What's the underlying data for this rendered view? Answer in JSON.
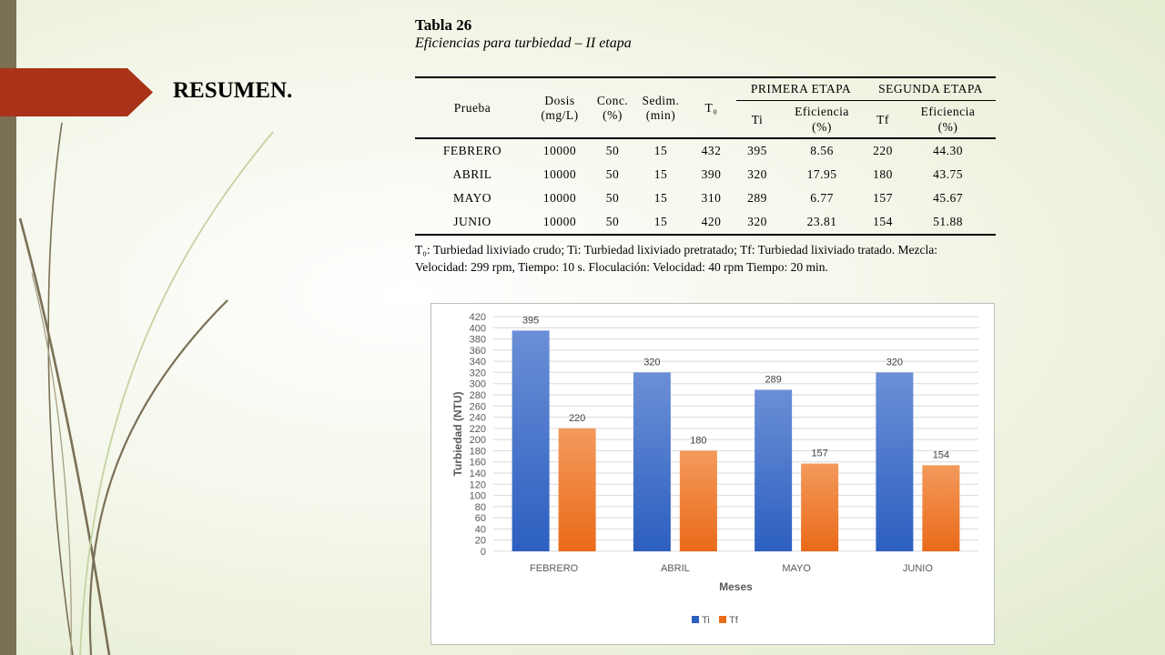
{
  "slide": {
    "heading": "RESUMEN."
  },
  "table": {
    "title": "Tabla 26",
    "subtitle": "Eficiencias para turbiedad – II etapa",
    "headers": {
      "prueba": "Prueba",
      "dosis": [
        "Dosis",
        "(mg/L)"
      ],
      "conc": [
        "Conc.",
        "(%)"
      ],
      "sedim": [
        "Sedim.",
        "(min)"
      ],
      "t0": "T₀",
      "primera_etapa": "PRIMERA ETAPA",
      "segunda_etapa": "SEGUNDA ETAPA",
      "ti": "Ti",
      "tf": "Tf",
      "eficiencia": [
        "Eficiencia",
        "(%)"
      ]
    },
    "rows": [
      [
        "FEBRERO",
        "10000",
        "50",
        "15",
        "432",
        "395",
        "8.56",
        "220",
        "44.30"
      ],
      [
        "ABRIL",
        "10000",
        "50",
        "15",
        "390",
        "320",
        "17.95",
        "180",
        "43.75"
      ],
      [
        "MAYO",
        "10000",
        "50",
        "15",
        "310",
        "289",
        "6.77",
        "157",
        "45.67"
      ],
      [
        "JUNIO",
        "10000",
        "50",
        "15",
        "420",
        "320",
        "23.81",
        "154",
        "51.88"
      ]
    ],
    "notes": [
      "T₀: Turbiedad lixiviado crudo; Ti: Turbiedad lixiviado pretratado; Tf: Turbiedad lixiviado tratado. Mezcla:",
      "Velocidad: 299 rpm, Tiempo: 10 s. Floculación: Velocidad: 40 rpm Tiempo: 20 min."
    ]
  },
  "colors": {
    "arrow": "#a93218",
    "ti_top": "#6b8fd6",
    "ti_bottom": "#2c5fc0",
    "tf_top": "#f39a5c",
    "tf_bottom": "#ea6a19"
  },
  "chart_data": {
    "type": "bar",
    "categories": [
      "FEBRERO",
      "ABRIL",
      "MAYO",
      "JUNIO"
    ],
    "series": [
      {
        "name": "Ti",
        "values": [
          395,
          320,
          289,
          320
        ]
      },
      {
        "name": "Tf",
        "values": [
          220,
          180,
          157,
          154
        ]
      }
    ],
    "xlabel": "Meses",
    "ylabel": "Turbiedad (NTU)",
    "ylim": [
      0,
      420
    ],
    "ytick_step": 20,
    "grid": true,
    "data_labels": true,
    "legend_position": "bottom"
  }
}
